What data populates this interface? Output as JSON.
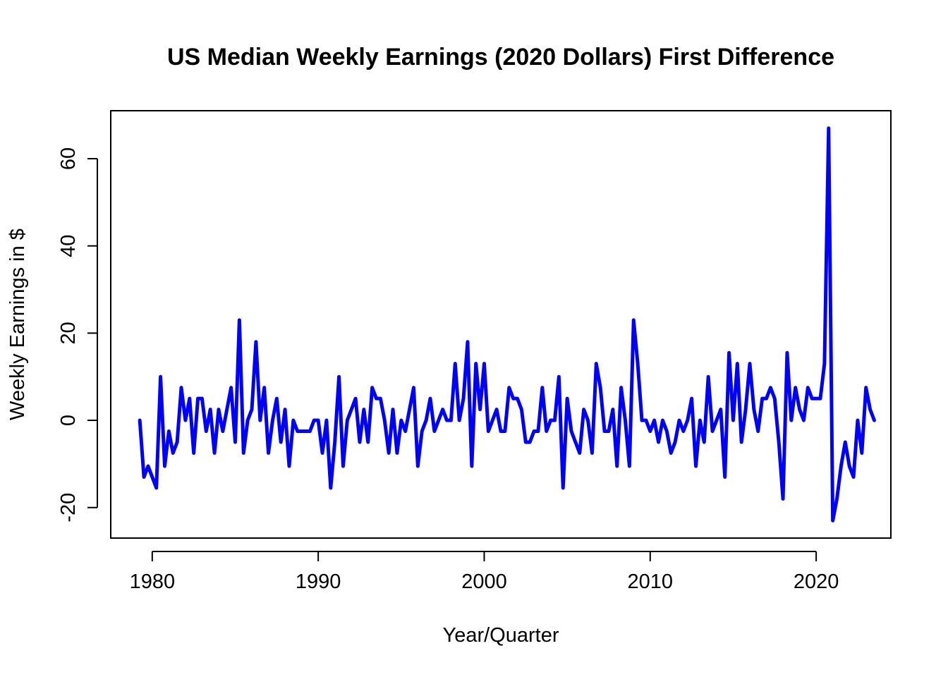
{
  "chart_data": {
    "type": "line",
    "title": "US Median Weekly Earnings (2020 Dollars) First Difference",
    "xlabel": "Year/Quarter",
    "ylabel": "Weekly Earnings in $",
    "xlim": [
      1977.5,
      2024.5
    ],
    "ylim": [
      -27,
      71
    ],
    "x_ticks": [
      1980,
      1990,
      2000,
      2010,
      2020
    ],
    "y_ticks": [
      -20,
      0,
      20,
      40,
      60
    ],
    "x_tick_labels": [
      "1980",
      "1990",
      "2000",
      "2010",
      "2020"
    ],
    "y_tick_labels": [
      "-20",
      "0",
      "20",
      "40",
      "60"
    ],
    "grid": false,
    "legend": "none",
    "series": [
      {
        "color": "#0000ff",
        "x_start": 1979.25,
        "x_step": 0.25,
        "values": [
          0,
          -13,
          -10.5,
          -13,
          -15.5,
          10,
          -10.5,
          -2.5,
          -7.5,
          -5,
          7.5,
          0,
          5,
          -7.5,
          5,
          5,
          -2.5,
          2.5,
          -7.5,
          2.5,
          -2.5,
          2.5,
          7.5,
          -5,
          23,
          -7.5,
          0,
          2.5,
          18,
          0,
          7.5,
          -7.5,
          0,
          5,
          -5,
          2.5,
          -10.5,
          0,
          -2.5,
          -2.5,
          -2.5,
          -2.5,
          0,
          0,
          -7.5,
          0,
          -15.5,
          -5,
          10,
          -10.5,
          0,
          2.5,
          5,
          -5,
          2.5,
          -5,
          7.5,
          5,
          5,
          0,
          -7.5,
          2.5,
          -7.5,
          0,
          -2.5,
          2.5,
          7.5,
          -10.5,
          -2.5,
          0,
          5,
          -2.5,
          0,
          2.5,
          0,
          0,
          13,
          0,
          5,
          18,
          -10.5,
          13,
          2.5,
          13,
          -2.5,
          0,
          2.5,
          -2.5,
          -2.5,
          7.5,
          5,
          5,
          2.5,
          -5,
          -5,
          -2.5,
          -2.5,
          7.5,
          -2.5,
          0,
          0,
          10,
          -15.5,
          5,
          -2.5,
          -5,
          -7.5,
          2.5,
          0,
          -7.5,
          13,
          7.5,
          -2.5,
          -2.5,
          2.5,
          -10.5,
          7.5,
          0,
          -10.5,
          23,
          13,
          0,
          0,
          -2.5,
          0,
          -5,
          0,
          -2.5,
          -7.5,
          -5,
          0,
          -2.5,
          0,
          5,
          -10.5,
          0,
          -5,
          10,
          -2.5,
          0,
          2.5,
          -13,
          15.5,
          0,
          13,
          -5,
          2.5,
          13,
          2.5,
          -2.5,
          5,
          5,
          7.5,
          5,
          -5,
          -18,
          15.5,
          0,
          7.5,
          2.5,
          0,
          7.5,
          5,
          5,
          5,
          13,
          67,
          -23,
          -18,
          -10.5,
          -5,
          -10.5,
          -13,
          0,
          -7.5,
          7.5,
          2.5,
          0
        ]
      }
    ]
  }
}
